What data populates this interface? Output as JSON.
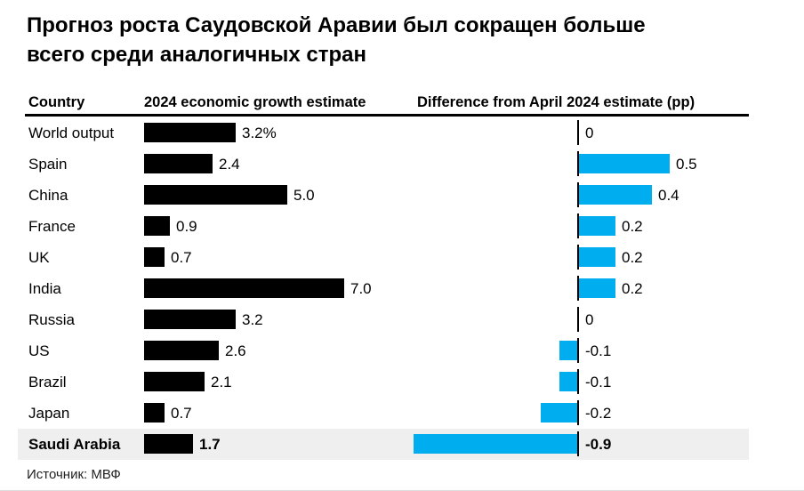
{
  "title": {
    "line1": "Прогноз роста Саудовской Аравии был сокращен больше",
    "line2": "всего среди аналогичных стран"
  },
  "source": "Источник: МВФ",
  "colors": {
    "growth_bar": "#000000",
    "diff_bar": "#00aeef",
    "highlight_bg": "#efefef",
    "header_rule": "#000000"
  },
  "chart_data": {
    "type": "bar",
    "orientation": "horizontal",
    "title": "Прогноз роста Саудовской Аравии был сокращен больше всего среди аналогичных стран",
    "columns": [
      "Country",
      "2024 economic growth estimate",
      "Difference from April 2024 estimate (pp)"
    ],
    "categories": [
      "World output",
      "Spain",
      "China",
      "France",
      "UK",
      "India",
      "Russia",
      "US",
      "Brazil",
      "Japan",
      "Saudi Arabia"
    ],
    "series": [
      {
        "name": "2024 economic growth estimate",
        "unit": "%",
        "values": [
          3.2,
          2.4,
          5.0,
          0.9,
          0.7,
          7.0,
          3.2,
          2.6,
          2.1,
          0.7,
          1.7
        ],
        "color": "#000000"
      },
      {
        "name": "Difference from April 2024 estimate (pp)",
        "unit": "pp",
        "values": [
          0,
          0.5,
          0.4,
          0.2,
          0.2,
          0.2,
          0,
          -0.1,
          -0.1,
          -0.2,
          -0.9
        ],
        "color": "#00aeef"
      }
    ],
    "rows": [
      {
        "country": "World output",
        "growth": 3.2,
        "growth_label": "3.2%",
        "diff": 0,
        "diff_label": "0",
        "highlight": false
      },
      {
        "country": "Spain",
        "growth": 2.4,
        "growth_label": "2.4",
        "diff": 0.5,
        "diff_label": "0.5",
        "highlight": false
      },
      {
        "country": "China",
        "growth": 5.0,
        "growth_label": "5.0",
        "diff": 0.4,
        "diff_label": "0.4",
        "highlight": false
      },
      {
        "country": "France",
        "growth": 0.9,
        "growth_label": "0.9",
        "diff": 0.2,
        "diff_label": "0.2",
        "highlight": false
      },
      {
        "country": "UK",
        "growth": 0.7,
        "growth_label": "0.7",
        "diff": 0.2,
        "diff_label": "0.2",
        "highlight": false
      },
      {
        "country": "India",
        "growth": 7.0,
        "growth_label": "7.0",
        "diff": 0.2,
        "diff_label": "0.2",
        "highlight": false
      },
      {
        "country": "Russia",
        "growth": 3.2,
        "growth_label": "3.2",
        "diff": 0,
        "diff_label": "0",
        "highlight": false
      },
      {
        "country": "US",
        "growth": 2.6,
        "growth_label": "2.6",
        "diff": -0.1,
        "diff_label": "-0.1",
        "highlight": false
      },
      {
        "country": "Brazil",
        "growth": 2.1,
        "growth_label": "2.1",
        "diff": -0.1,
        "diff_label": "-0.1",
        "highlight": false
      },
      {
        "country": "Japan",
        "growth": 0.7,
        "growth_label": "0.7",
        "diff": -0.2,
        "diff_label": "-0.2",
        "highlight": false
      },
      {
        "country": "Saudi Arabia",
        "growth": 1.7,
        "growth_label": "1.7",
        "diff": -0.9,
        "diff_label": "-0.9",
        "highlight": true
      }
    ],
    "highlight_row": "Saudi Arabia",
    "legend": "none",
    "grid": "off",
    "zero_axis": "shown per row in difference column",
    "source": "Источник: МВФ"
  }
}
